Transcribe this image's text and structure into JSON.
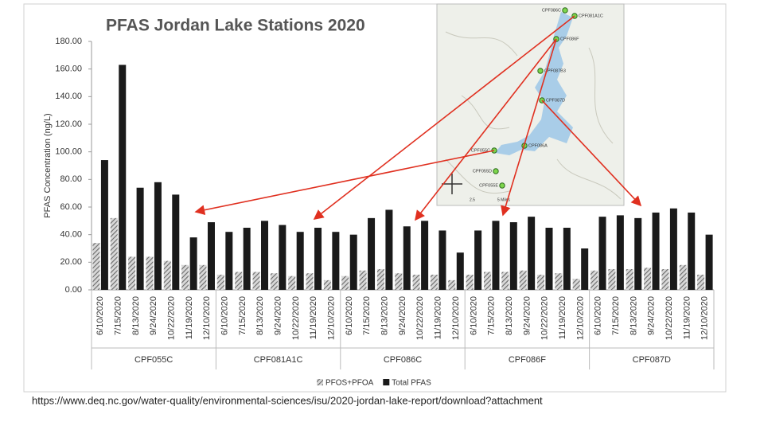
{
  "chart_data": {
    "type": "grouped_bar",
    "title": "PFAS Jordan Lake Stations 2020",
    "y_label": "PFAS Concentration (ng/L)",
    "source": "https://www.deq.nc.gov/water-quality/environmental-sciences/isu/2020-jordan-lake-report/download?attachment",
    "groups": [
      "CPF055C",
      "CPF081A1C",
      "CPF086C",
      "CPF086F",
      "CPF087D"
    ],
    "categories": [
      "6/10/2020",
      "7/15/2020",
      "8/13/2020",
      "9/24/2020",
      "10/22/2020",
      "11/19/2020",
      "12/10/2020",
      "6/10/2020",
      "7/15/2020",
      "8/13/2020",
      "9/24/2020",
      "10/22/2020",
      "11/19/2020",
      "12/10/2020",
      "6/10/2020",
      "7/15/2020",
      "8/13/2020",
      "9/24/2020",
      "10/22/2020",
      "11/19/2020",
      "12/10/2020",
      "6/10/2020",
      "7/15/2020",
      "8/13/2020",
      "9/24/2020",
      "10/22/2020",
      "11/19/2020",
      "12/10/2020",
      "6/10/2020",
      "7/15/2020",
      "8/13/2020",
      "9/24/2020",
      "10/22/2020",
      "11/19/2020",
      "12/10/2020"
    ],
    "series": [
      {
        "name": "PFOS+PFOA",
        "color": "#8a8a8a",
        "hatched": true,
        "values": [
          34,
          52,
          24,
          24,
          21,
          18,
          18,
          11,
          13,
          13,
          12,
          10,
          12,
          7,
          10,
          14,
          15,
          12,
          11,
          11,
          7,
          11,
          13,
          13,
          14,
          11,
          12,
          8,
          14,
          15,
          15,
          16,
          15,
          18,
          11
        ]
      },
      {
        "name": "Total PFAS",
        "color": "#1a1a1a",
        "hatched": false,
        "values": [
          94,
          163,
          74,
          78,
          69,
          38,
          49,
          42,
          45,
          50,
          47,
          42,
          45,
          42,
          40,
          52,
          58,
          46,
          50,
          43,
          27,
          43,
          50,
          49,
          53,
          45,
          45,
          30,
          53,
          54,
          52,
          56,
          59,
          56,
          40
        ]
      }
    ],
    "ylim": [
      0,
      180
    ],
    "yticks": [
      {
        "value": 0,
        "label": "0.00"
      },
      {
        "value": 20,
        "label": "20.00"
      },
      {
        "value": 40,
        "label": "40.00"
      },
      {
        "value": 60,
        "label": "60.00"
      },
      {
        "value": 80,
        "label": "80.00"
      },
      {
        "value": 100,
        "label": "100.00"
      },
      {
        "value": 120,
        "label": "120.00"
      },
      {
        "value": 140,
        "label": "140.00"
      },
      {
        "value": 160,
        "label": "160.00"
      },
      {
        "value": 180,
        "label": "180.00"
      }
    ],
    "legend": "bottom"
  },
  "map": {
    "stations": [
      "CPF086C",
      "CPF081A1C",
      "CPF086F",
      "CPF087B3",
      "CPF087D",
      "CPF086A",
      "CPF055C",
      "CPF055D",
      "CPF055E"
    ],
    "scale": [
      "2.5",
      "5 Miles"
    ]
  }
}
